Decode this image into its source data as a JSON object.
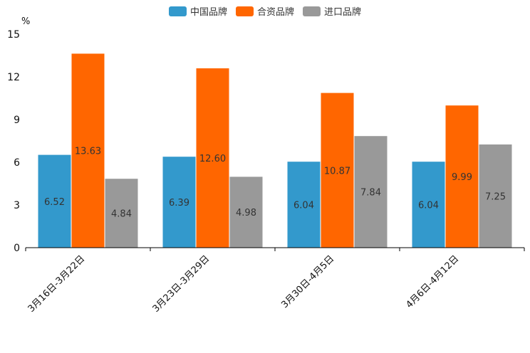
{
  "chart_data": {
    "type": "bar",
    "title": "",
    "xlabel": "",
    "ylabel": "%",
    "ylim": [
      0,
      15
    ],
    "yticks": [
      0,
      3,
      6,
      9,
      12,
      15
    ],
    "grid": false,
    "legend_position": "top-center",
    "categories": [
      "3月16日-3月22日",
      "3月23日-3月29日",
      "3月30日-4月5日",
      "4月6日-4月12日"
    ],
    "series": [
      {
        "name": "中国品牌",
        "color": "#3399cc",
        "values": [
          6.52,
          6.39,
          6.04,
          6.04
        ],
        "labels": [
          "6.52",
          "6.39",
          "6.04",
          "6.04"
        ]
      },
      {
        "name": "合资品牌",
        "color": "#ff6600",
        "values": [
          13.63,
          12.6,
          10.87,
          9.99
        ],
        "labels": [
          "13.63",
          "12.60",
          "10.87",
          "9.99"
        ]
      },
      {
        "name": "进口品牌",
        "color": "#999999",
        "values": [
          4.84,
          4.98,
          7.84,
          7.25
        ],
        "labels": [
          "4.84",
          "4.98",
          "7.84",
          "7.25"
        ]
      }
    ]
  }
}
